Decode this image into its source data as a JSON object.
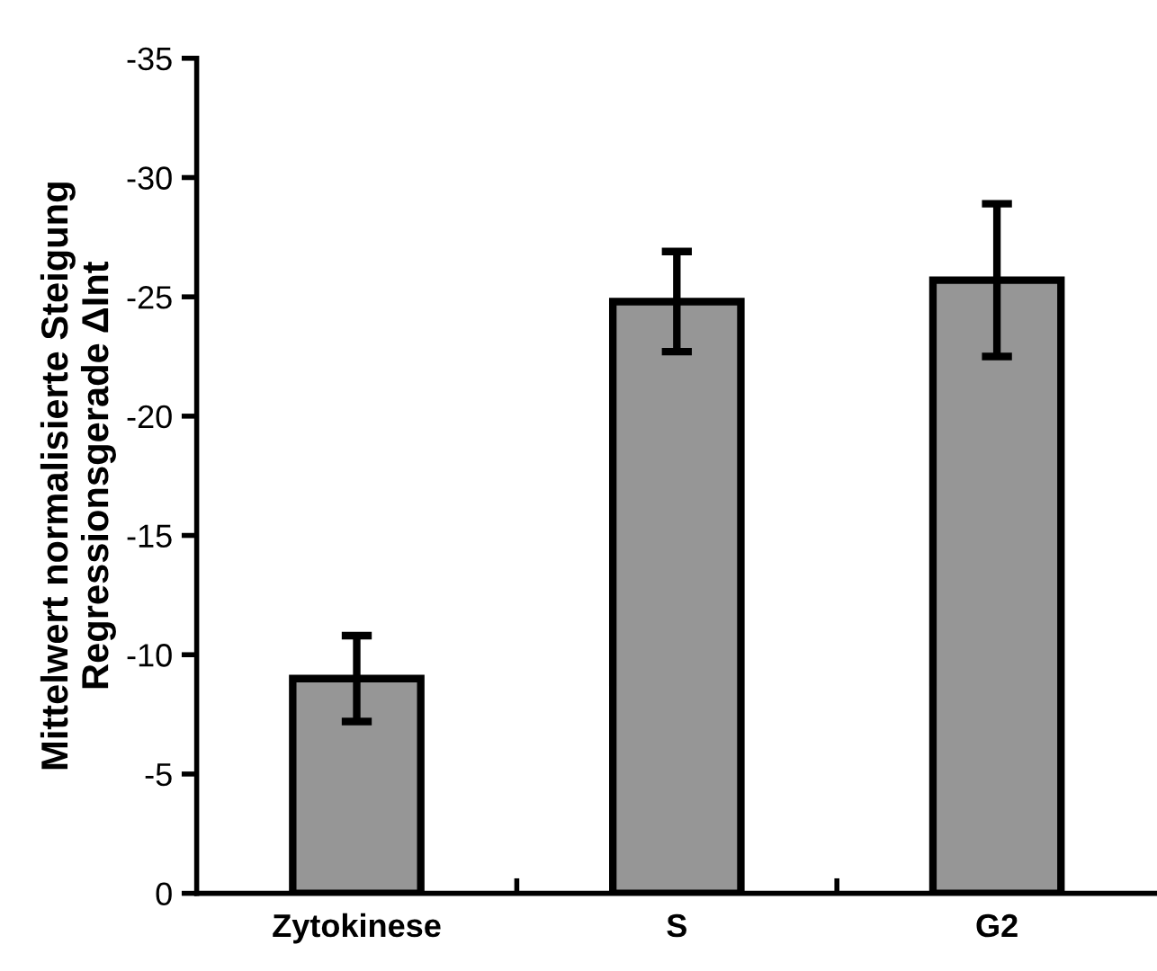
{
  "chart_data": {
    "type": "bar",
    "ylabel": "Mittelwert normalisierte Steigung\nRegressionsgerade ΔInt",
    "categories": [
      "Zytokinese",
      "S",
      "G2"
    ],
    "values": [
      -9.0,
      -24.8,
      -25.7
    ],
    "errors": [
      1.8,
      2.1,
      3.2
    ],
    "color": "#969696",
    "ylim": [
      0,
      -35
    ],
    "yticks": [
      0,
      -5,
      -10,
      -15,
      -20,
      -25,
      -30,
      -35
    ],
    "grid": false
  }
}
